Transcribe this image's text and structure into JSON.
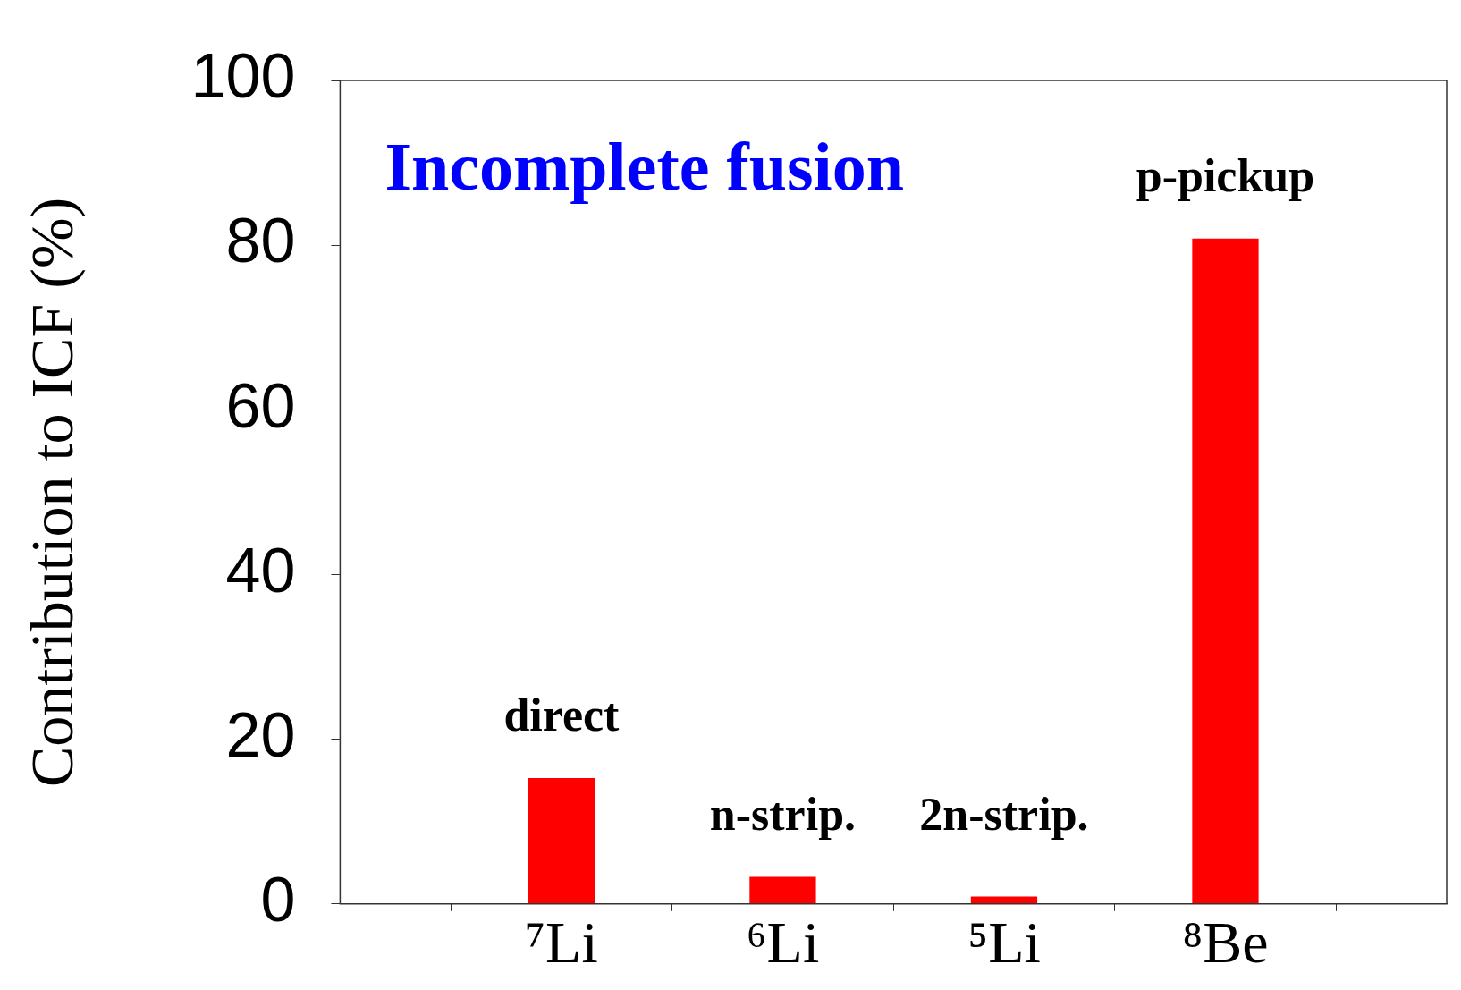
{
  "chart_data": {
    "type": "bar",
    "ylabel": "Contribution to ICF (%)",
    "categories": [
      null,
      "⁷Li",
      "⁶Li",
      "⁵Li",
      "⁸Be",
      null
    ],
    "values": [
      null,
      15.3,
      3.3,
      0.9,
      80.8,
      null
    ],
    "color": "#ff0000",
    "ylim": [
      0,
      100
    ],
    "yticks": [
      0,
      20,
      40,
      60,
      80,
      100
    ],
    "grid": false,
    "legend": false,
    "annotations": [
      "Incomplete fusion",
      "direct",
      "n-strip.",
      "2n-strip.",
      "p-pickup"
    ]
  }
}
